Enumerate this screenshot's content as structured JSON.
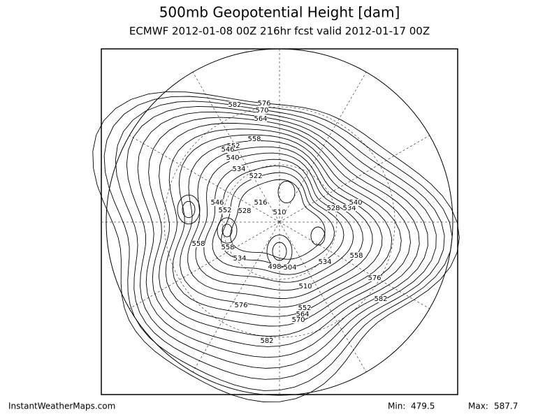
{
  "header": {
    "title": "500mb Geopotential Height [dam]",
    "subtitle": "ECMWF 2012-01-08 00Z 216hr fcst valid 2012-01-17 00Z"
  },
  "contour_labels": [
    "582",
    "576",
    "570",
    "564",
    "558",
    "552",
    "546",
    "540",
    "534",
    "522",
    "546",
    "552",
    "528",
    "516",
    "510",
    "528",
    "534",
    "540",
    "558",
    "558",
    "534",
    "498",
    "504",
    "534",
    "558",
    "510",
    "576",
    "582",
    "576",
    "552",
    "564",
    "570",
    "582"
  ],
  "footer": {
    "source": "InstantWeatherMaps.com",
    "min": {
      "label": "Min:",
      "value": 479.5
    },
    "max": {
      "label": "Max:",
      "value": 587.7
    }
  }
}
